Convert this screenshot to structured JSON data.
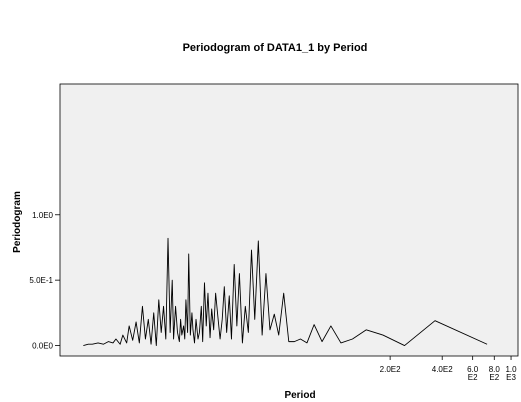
{
  "chart_data": {
    "type": "line",
    "title": "Periodogram of DATA1_1 by Period",
    "x_label": "Period",
    "y_label": "Periodogram",
    "xscale": "log",
    "xlim": [
      2.47,
      1097
    ],
    "ylim": [
      -0.08,
      2.0
    ],
    "xticks": [
      {
        "value": 200,
        "label": "2.0E2"
      },
      {
        "value": 400,
        "label": "4.0E2"
      },
      {
        "value": 600,
        "label": "6.0E2"
      },
      {
        "value": 800,
        "label": "8.0E2"
      },
      {
        "value": 1000,
        "label": "1.0E3"
      }
    ],
    "yticks": [
      {
        "value": 0,
        "label": "0.0E0"
      },
      {
        "value": 0.5,
        "label": "5.0E-1"
      },
      {
        "value": 1.0,
        "label": "1.0E0"
      }
    ],
    "x": [
      3.37,
      3.6,
      3.8,
      4.1,
      4.4,
      4.7,
      5.0,
      5.2,
      5.5,
      5.7,
      6.0,
      6.2,
      6.5,
      6.8,
      7.1,
      7.4,
      7.7,
      8.0,
      8.3,
      8.6,
      8.9,
      9.2,
      9.5,
      9.8,
      10.1,
      10.4,
      10.7,
      11.0,
      11.2,
      11.5,
      11.8,
      12.1,
      12.3,
      12.5,
      12.8,
      13.0,
      13.2,
      13.5,
      13.7,
      14.0,
      14.3,
      14.5,
      14.8,
      15.1,
      15.5,
      15.8,
      16.2,
      16.5,
      16.9,
      17.3,
      17.7,
      18.2,
      18.6,
      19.1,
      19.6,
      20.2,
      20.8,
      21.4,
      22.0,
      22.7,
      23.5,
      24.2,
      25.1,
      26.0,
      26.9,
      28.0,
      29.1,
      30.3,
      31.6,
      33.0,
      34.6,
      36.4,
      38.3,
      40.4,
      42.8,
      45.4,
      48.5,
      51.9,
      55.9,
      60.6,
      66.1,
      72.7,
      80.8,
      90.9,
      103.9,
      121.2,
      145.4,
      181.8,
      242.3,
      363.5,
      727
    ],
    "series": [
      {
        "name": "Periodogram",
        "color": "#000000",
        "values": [
          0.0,
          0.01,
          0.01,
          0.02,
          0.01,
          0.03,
          0.02,
          0.05,
          0.01,
          0.08,
          0.02,
          0.15,
          0.04,
          0.18,
          0.02,
          0.3,
          0.05,
          0.2,
          0.01,
          0.25,
          0.0,
          0.35,
          0.1,
          0.3,
          0.05,
          0.82,
          0.1,
          0.5,
          0.05,
          0.3,
          0.1,
          0.03,
          0.2,
          0.08,
          0.15,
          0.05,
          0.35,
          0.1,
          0.7,
          0.08,
          0.25,
          0.12,
          0.02,
          0.2,
          0.05,
          0.1,
          0.3,
          0.03,
          0.48,
          0.15,
          0.4,
          0.06,
          0.28,
          0.12,
          0.4,
          0.22,
          0.05,
          0.2,
          0.45,
          0.1,
          0.38,
          0.05,
          0.62,
          0.15,
          0.55,
          0.02,
          0.3,
          0.1,
          0.73,
          0.2,
          0.8,
          0.08,
          0.55,
          0.12,
          0.24,
          0.08,
          0.4,
          0.03,
          0.03,
          0.05,
          0.02,
          0.16,
          0.03,
          0.15,
          0.02,
          0.05,
          0.12,
          0.08,
          0.0,
          0.19,
          0.01
        ]
      }
    ]
  }
}
